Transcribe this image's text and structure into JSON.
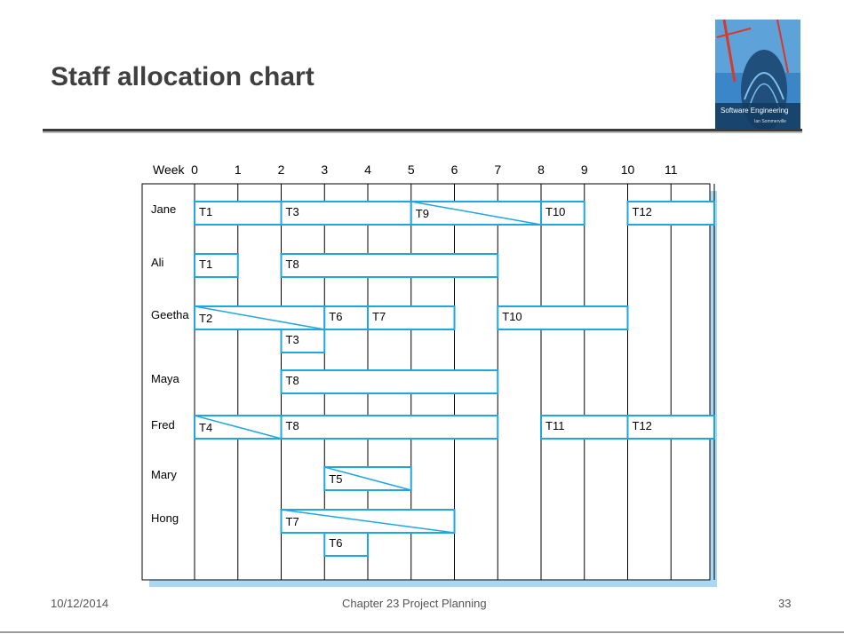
{
  "slide": {
    "title": "Staff allocation chart",
    "footer_date": "10/12/2014",
    "footer_chapter": "Chapter 23 Project Planning",
    "footer_page": "33"
  },
  "book_cover": {
    "title": "Software Engineering",
    "author": "Ian Sommerville"
  },
  "colors": {
    "task_border": "#1ea7e1",
    "shadow": "#a9d8f2",
    "grid": "#000000",
    "title": "#3f3f3f"
  },
  "chart_data": {
    "type": "gantt",
    "axis_label": "Week",
    "weeks": [
      "0",
      "1",
      "2",
      "3",
      "4",
      "5",
      "6",
      "7",
      "8",
      "9",
      "10",
      "11"
    ],
    "staff": [
      "Jane",
      "Ali",
      "Geetha",
      "Maya",
      "Fred",
      "Mary",
      "Hong"
    ],
    "tasks": [
      {
        "staff": "Jane",
        "task": "T1",
        "start": 0,
        "end": 2,
        "lane": 0,
        "partial": false
      },
      {
        "staff": "Jane",
        "task": "T3",
        "start": 2,
        "end": 5,
        "lane": 0,
        "partial": false
      },
      {
        "staff": "Jane",
        "task": "T9",
        "start": 5,
        "end": 8,
        "lane": 0,
        "partial": true
      },
      {
        "staff": "Jane",
        "task": "T10",
        "start": 8,
        "end": 9,
        "lane": 0,
        "partial": false
      },
      {
        "staff": "Jane",
        "task": "T12",
        "start": 10,
        "end": 12,
        "lane": 0,
        "partial": false
      },
      {
        "staff": "Ali",
        "task": "T1",
        "start": 0,
        "end": 1,
        "lane": 0,
        "partial": false
      },
      {
        "staff": "Ali",
        "task": "T8",
        "start": 2,
        "end": 7,
        "lane": 0,
        "partial": false
      },
      {
        "staff": "Geetha",
        "task": "T2",
        "start": 0,
        "end": 3,
        "lane": 0,
        "partial": true
      },
      {
        "staff": "Geetha",
        "task": "T6",
        "start": 3,
        "end": 4,
        "lane": 0,
        "partial": false
      },
      {
        "staff": "Geetha",
        "task": "T7",
        "start": 4,
        "end": 6,
        "lane": 0,
        "partial": false
      },
      {
        "staff": "Geetha",
        "task": "T10",
        "start": 7,
        "end": 10,
        "lane": 0,
        "partial": false
      },
      {
        "staff": "Geetha",
        "task": "T3",
        "start": 2,
        "end": 3,
        "lane": 1,
        "partial": false
      },
      {
        "staff": "Maya",
        "task": "T8",
        "start": 2,
        "end": 7,
        "lane": 0,
        "partial": false
      },
      {
        "staff": "Fred",
        "task": "T4",
        "start": 0,
        "end": 2,
        "lane": 0,
        "partial": true
      },
      {
        "staff": "Fred",
        "task": "T8",
        "start": 2,
        "end": 7,
        "lane": 0,
        "partial": false
      },
      {
        "staff": "Fred",
        "task": "T11",
        "start": 8,
        "end": 10,
        "lane": 0,
        "partial": false
      },
      {
        "staff": "Fred",
        "task": "T12",
        "start": 10,
        "end": 12,
        "lane": 0,
        "partial": false
      },
      {
        "staff": "Mary",
        "task": "T5",
        "start": 3,
        "end": 5,
        "lane": 0,
        "partial": true
      },
      {
        "staff": "Hong",
        "task": "T7",
        "start": 2,
        "end": 6,
        "lane": 0,
        "partial": true
      },
      {
        "staff": "Hong",
        "task": "T6",
        "start": 3,
        "end": 4,
        "lane": 1,
        "partial": false
      }
    ]
  }
}
